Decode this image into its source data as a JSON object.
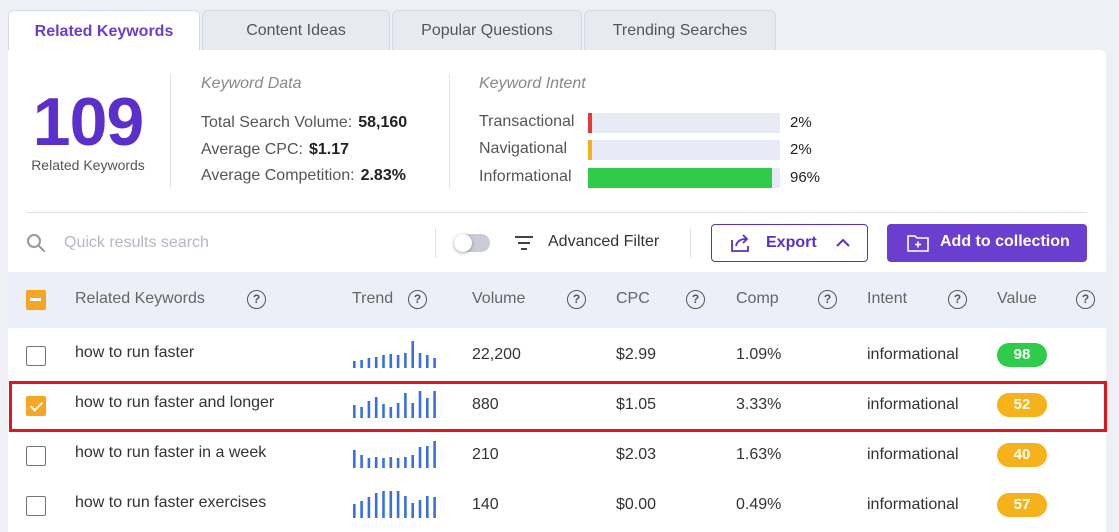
{
  "tabs": [
    {
      "label": "Related Keywords",
      "active": true
    },
    {
      "label": "Content Ideas",
      "active": false
    },
    {
      "label": "Popular Questions",
      "active": false
    },
    {
      "label": "Trending Searches",
      "active": false
    }
  ],
  "summary": {
    "count": "109",
    "count_label": "Related Keywords",
    "keyword_data_title": "Keyword Data",
    "total_volume_label": "Total Search Volume:",
    "total_volume": "58,160",
    "avg_cpc_label": "Average CPC:",
    "avg_cpc": "$1.17",
    "avg_comp_label": "Average Competition:",
    "avg_comp": "2.83%"
  },
  "intent": {
    "title": "Keyword Intent",
    "items": [
      {
        "label": "Transactional",
        "pct": "2%",
        "fraction": 0.02,
        "color": "#e53935"
      },
      {
        "label": "Navigational",
        "pct": "2%",
        "fraction": 0.02,
        "color": "#f6b21b"
      },
      {
        "label": "Informational",
        "pct": "96%",
        "fraction": 0.96,
        "color": "#2ecc4a"
      }
    ]
  },
  "toolbar": {
    "search_placeholder": "Quick results search",
    "advanced_filter": "Advanced Filter",
    "export": "Export",
    "add_to_collection": "Add to collection"
  },
  "table": {
    "headers": {
      "keyword": "Related Keywords",
      "trend": "Trend",
      "volume": "Volume",
      "cpc": "CPC",
      "comp": "Comp",
      "intent": "Intent",
      "value": "Value"
    },
    "help_glyph": "?",
    "rows": [
      {
        "keyword": "how to run faster",
        "volume": "22,200",
        "cpc": "$2.99",
        "comp": "1.09%",
        "intent": "informational",
        "value": "98",
        "value_color": "#2ecc4a",
        "checked": false,
        "trend": [
          0.25,
          0.3,
          0.35,
          0.4,
          0.45,
          0.5,
          0.45,
          0.55,
          0.95,
          0.55,
          0.45,
          0.35
        ]
      },
      {
        "keyword": "how to run faster and longer",
        "volume": "880",
        "cpc": "$1.05",
        "comp": "3.33%",
        "intent": "informational",
        "value": "52",
        "value_color": "#f6b21b",
        "checked": true,
        "trend": [
          0.45,
          0.4,
          0.6,
          0.75,
          0.5,
          0.4,
          0.55,
          0.9,
          0.55,
          0.95,
          0.7,
          0.95
        ]
      },
      {
        "keyword": "how to run faster in a week",
        "volume": "210",
        "cpc": "$2.03",
        "comp": "1.63%",
        "intent": "informational",
        "value": "40",
        "value_color": "#f6b21b",
        "checked": false,
        "trend": [
          0.65,
          0.45,
          0.35,
          0.4,
          0.35,
          0.4,
          0.35,
          0.4,
          0.45,
          0.75,
          0.8,
          0.95
        ]
      },
      {
        "keyword": "how to run faster exercises",
        "volume": "140",
        "cpc": "$0.00",
        "comp": "0.49%",
        "intent": "informational",
        "value": "57",
        "value_color": "#f6b21b",
        "checked": false,
        "trend": [
          0.5,
          0.6,
          0.75,
          0.9,
          0.95,
          0.95,
          0.95,
          0.8,
          0.55,
          0.65,
          0.8,
          0.75
        ]
      }
    ]
  },
  "colors": {
    "accent": "#6a3fd0",
    "trend_bar": "#3a6fe0",
    "selection_outline": "#e0161f"
  }
}
